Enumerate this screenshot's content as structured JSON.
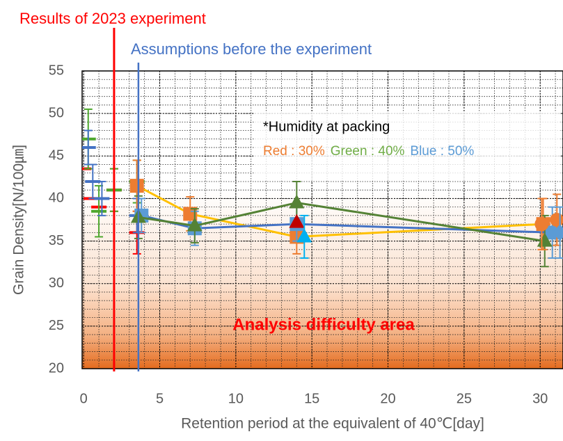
{
  "chart_data": {
    "type": "scatter",
    "title": "Results of 2023 experiment",
    "subtitle": "Assumptions before the experiment",
    "x_label": "Retention period at the equivalent of 40℃[day]",
    "y_label": "Grain Density[N/100㎛]",
    "xlim": [
      -0.1,
      31.5
    ],
    "ylim": [
      20,
      55
    ],
    "xticks": [
      0,
      5,
      10,
      15,
      20,
      25,
      30
    ],
    "yticks": [
      20,
      25,
      30,
      35,
      40,
      45,
      50,
      55
    ],
    "grid": true,
    "reference_lines": [
      {
        "x": 2,
        "color": "#ff0000"
      },
      {
        "x": 3.6,
        "color": "#4472c4"
      }
    ],
    "note": {
      "heading": "*Humidity at packing",
      "items": [
        {
          "text": "Red : 30%",
          "color": "#ed7d31"
        },
        {
          "text": "Green : 40%",
          "color": "#70ad47"
        },
        {
          "text": "Blue : 50%",
          "color": "#5b9bd5"
        }
      ]
    },
    "area_label": "Analysis difficulty area",
    "series": [
      {
        "color": "#ff0000",
        "marker": "dash",
        "x": [
          0,
          0.5,
          1,
          2,
          3.5
        ],
        "values": [
          43.5,
          40,
          39,
          41,
          36
        ],
        "errors": [
          0,
          0,
          0,
          2.5,
          2.5
        ]
      },
      {
        "color": "#4ea72e",
        "marker": "dash",
        "x": [
          0.3,
          1,
          2,
          3.5
        ],
        "values": [
          47,
          38.5,
          41,
          42
        ],
        "errors": [
          3.5,
          3,
          2.5,
          2.5
        ]
      },
      {
        "color": "#4472c4",
        "marker": "dash",
        "x": [
          0.3,
          0.6,
          1.2,
          3.5
        ],
        "values": [
          46,
          42,
          40,
          38
        ],
        "errors": [
          2,
          2,
          2,
          2
        ]
      },
      {
        "color": "#ed7d31",
        "line_color": "#ffc000",
        "marker": "square",
        "x": [
          3.5,
          7,
          14,
          30.2
        ],
        "values": [
          41.5,
          38.2,
          35.5,
          37
        ],
        "errors": [
          3,
          2,
          2,
          3
        ]
      },
      {
        "color": "#5b9bd5",
        "line_color": "#4472c4",
        "marker": "square",
        "x": [
          3.8,
          7.3,
          14,
          30.8
        ],
        "values": [
          38,
          36.5,
          37,
          36
        ],
        "errors": [
          2,
          2,
          2,
          3
        ]
      },
      {
        "color": "#548235",
        "line_color": "#548235",
        "marker": "triangle",
        "x": [
          3.6,
          7.3,
          14,
          30.3
        ],
        "values": [
          37.8,
          36.8,
          39.5,
          35
        ],
        "errors": [
          2.5,
          2,
          2.5,
          3
        ]
      },
      {
        "color": "#c00000",
        "marker": "triangle",
        "x": [
          14
        ],
        "values": [
          37.2
        ],
        "errors": [
          0
        ]
      },
      {
        "color": "#00b0f0",
        "marker": "triangle",
        "x": [
          14.5
        ],
        "values": [
          35.5
        ],
        "errors": [
          2.5
        ]
      },
      {
        "color": "#ed7d31",
        "marker": "circle",
        "x": [
          30.1,
          31.1
        ],
        "values": [
          37,
          37.5
        ],
        "errors": [
          3,
          3
        ]
      },
      {
        "color": "#5b9bd5",
        "marker": "diamond",
        "x": [
          31.3
        ],
        "values": [
          36
        ],
        "errors": [
          3
        ]
      }
    ]
  }
}
